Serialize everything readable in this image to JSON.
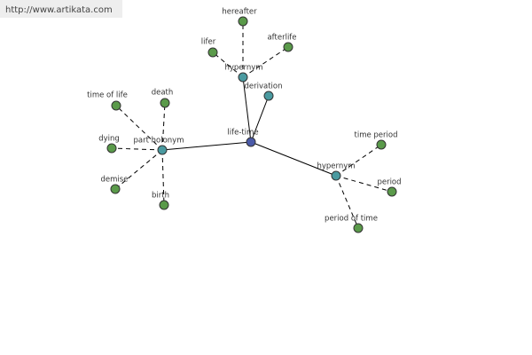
{
  "header": {
    "url": "http://www.artikata.com"
  },
  "nodes": [
    {
      "label": "life-time"
    },
    {
      "label": "hypernym"
    },
    {
      "label": "derivation"
    },
    {
      "label": "part holonym"
    },
    {
      "label": "hypernym"
    },
    {
      "label": "hereafter"
    },
    {
      "label": "lifer"
    },
    {
      "label": "afterlife"
    },
    {
      "label": "time of life"
    },
    {
      "label": "death"
    },
    {
      "label": "dying"
    },
    {
      "label": "demise"
    },
    {
      "label": "birth"
    },
    {
      "label": "time period"
    },
    {
      "label": "period"
    },
    {
      "label": "period of time"
    }
  ]
}
